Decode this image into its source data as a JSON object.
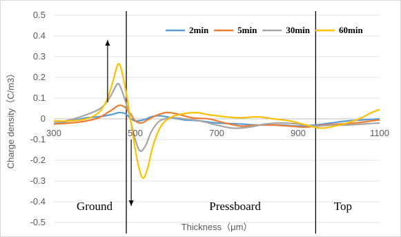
{
  "chart_data": {
    "type": "line",
    "title": "",
    "xlabel": "Thickness（μm）",
    "ylabel": "Charge density（C/m3）",
    "xlim": [
      300,
      1100
    ],
    "ylim": [
      -0.5,
      0.5
    ],
    "xticks": [
      "300",
      "500",
      "700",
      "900",
      "1100"
    ],
    "yticks": [
      "0.5",
      "0.4",
      "0.3",
      "0.2",
      "0.1",
      "0",
      "-0.1",
      "-0.2",
      "-0.3",
      "-0.4",
      "-0.5"
    ],
    "grid": "horizontal",
    "legend": "top-right",
    "series": [
      {
        "name": "2min",
        "color": "#5b9bd5",
        "points": [
          [
            300,
            -0.02
          ],
          [
            340,
            -0.01
          ],
          [
            380,
            0.005
          ],
          [
            410,
            0.01
          ],
          [
            440,
            0.02
          ],
          [
            460,
            0.03
          ],
          [
            475,
            0.025
          ],
          [
            490,
            0.0
          ],
          [
            500,
            -0.01
          ],
          [
            520,
            -0.005
          ],
          [
            540,
            0.01
          ],
          [
            560,
            0.015
          ],
          [
            590,
            0.005
          ],
          [
            620,
            -0.005
          ],
          [
            660,
            -0.01
          ],
          [
            700,
            -0.02
          ],
          [
            760,
            -0.025
          ],
          [
            800,
            -0.03
          ],
          [
            860,
            -0.03
          ],
          [
            900,
            -0.035
          ],
          [
            940,
            -0.03
          ],
          [
            980,
            -0.02
          ],
          [
            1020,
            -0.01
          ],
          [
            1060,
            -0.005
          ],
          [
            1100,
            0.0
          ]
        ]
      },
      {
        "name": "5min",
        "color": "#ed7d31",
        "points": [
          [
            300,
            -0.025
          ],
          [
            340,
            -0.02
          ],
          [
            380,
            -0.01
          ],
          [
            410,
            0.005
          ],
          [
            440,
            0.04
          ],
          [
            460,
            0.065
          ],
          [
            475,
            0.055
          ],
          [
            490,
            0.02
          ],
          [
            500,
            -0.01
          ],
          [
            515,
            -0.02
          ],
          [
            530,
            -0.005
          ],
          [
            550,
            0.015
          ],
          [
            575,
            0.03
          ],
          [
            600,
            0.025
          ],
          [
            640,
            0.005
          ],
          [
            680,
            0.0
          ],
          [
            720,
            -0.02
          ],
          [
            760,
            -0.035
          ],
          [
            800,
            -0.03
          ],
          [
            840,
            -0.03
          ],
          [
            880,
            -0.035
          ],
          [
            920,
            -0.04
          ],
          [
            960,
            -0.03
          ],
          [
            1000,
            -0.025
          ],
          [
            1040,
            -0.02
          ],
          [
            1080,
            -0.01
          ],
          [
            1100,
            -0.005
          ]
        ]
      },
      {
        "name": "30min",
        "color": "#a5a5a5",
        "points": [
          [
            300,
            -0.02
          ],
          [
            340,
            -0.005
          ],
          [
            380,
            0.02
          ],
          [
            410,
            0.045
          ],
          [
            430,
            0.08
          ],
          [
            445,
            0.13
          ],
          [
            458,
            0.17
          ],
          [
            470,
            0.12
          ],
          [
            485,
            0.02
          ],
          [
            500,
            -0.1
          ],
          [
            512,
            -0.155
          ],
          [
            525,
            -0.13
          ],
          [
            540,
            -0.06
          ],
          [
            560,
            -0.01
          ],
          [
            590,
            0.005
          ],
          [
            620,
            0.0
          ],
          [
            660,
            -0.01
          ],
          [
            700,
            -0.03
          ],
          [
            740,
            -0.045
          ],
          [
            780,
            -0.04
          ],
          [
            820,
            -0.025
          ],
          [
            860,
            -0.02
          ],
          [
            900,
            -0.025
          ],
          [
            940,
            -0.035
          ],
          [
            980,
            -0.03
          ],
          [
            1020,
            -0.03
          ],
          [
            1060,
            -0.025
          ],
          [
            1100,
            -0.02
          ]
        ]
      },
      {
        "name": "60min",
        "color": "#ffc000",
        "points": [
          [
            300,
            -0.01
          ],
          [
            340,
            -0.01
          ],
          [
            380,
            0.0
          ],
          [
            410,
            0.03
          ],
          [
            430,
            0.09
          ],
          [
            445,
            0.18
          ],
          [
            458,
            0.265
          ],
          [
            468,
            0.22
          ],
          [
            480,
            0.1
          ],
          [
            492,
            -0.05
          ],
          [
            505,
            -0.2
          ],
          [
            518,
            -0.285
          ],
          [
            530,
            -0.24
          ],
          [
            545,
            -0.12
          ],
          [
            565,
            -0.03
          ],
          [
            590,
            0.01
          ],
          [
            620,
            0.025
          ],
          [
            650,
            0.03
          ],
          [
            680,
            0.02
          ],
          [
            720,
            0.01
          ],
          [
            760,
            0.005
          ],
          [
            800,
            0.01
          ],
          [
            840,
            0.0
          ],
          [
            880,
            -0.01
          ],
          [
            910,
            -0.025
          ],
          [
            940,
            -0.04
          ],
          [
            960,
            -0.045
          ],
          [
            990,
            -0.035
          ],
          [
            1020,
            -0.02
          ],
          [
            1050,
            0.0
          ],
          [
            1080,
            0.03
          ],
          [
            1100,
            0.045
          ]
        ]
      }
    ],
    "annotations": {
      "regions": [
        "Ground",
        "Pressboard",
        "Top"
      ],
      "boundary_x": [
        478,
        943
      ],
      "arrows": [
        {
          "direction": "up",
          "x": 432,
          "from_y": 0.08,
          "to_y": 0.38
        },
        {
          "direction": "down",
          "x": 490,
          "from_y": -0.1,
          "to_y": -0.42
        }
      ]
    }
  }
}
